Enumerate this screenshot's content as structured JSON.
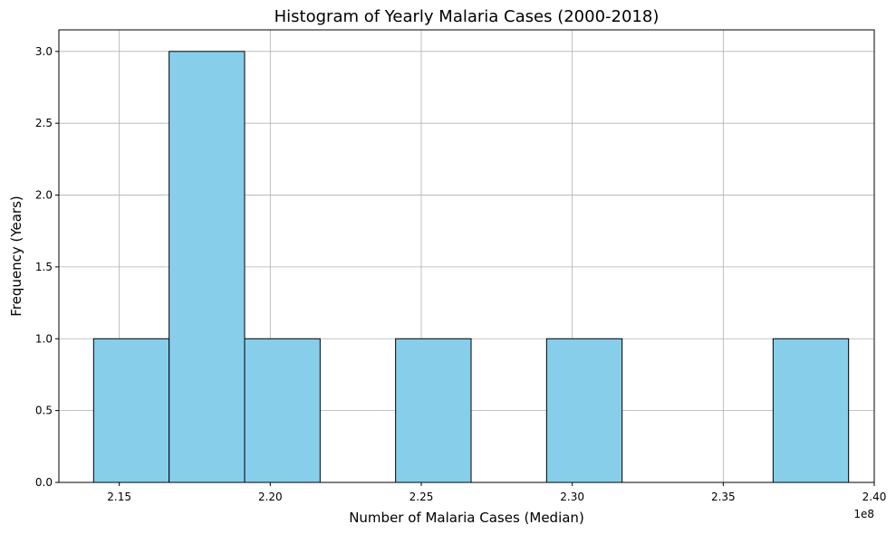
{
  "chart_data": {
    "type": "bar",
    "title": "Histogram of Yearly Malaria Cases (2000-2018)",
    "xlabel": "Number of Malaria Cases (Median)",
    "ylabel": "Frequency (Years)",
    "x_scale_label": "1e8",
    "xlim": [
      2.13,
      2.4
    ],
    "ylim": [
      0,
      3.15
    ],
    "grid": true,
    "bar_color": "#87CEEB",
    "edge_color": "#000000",
    "bins": [
      {
        "start": 2.1415,
        "end": 2.1665,
        "count": 1
      },
      {
        "start": 2.1665,
        "end": 2.1915,
        "count": 3
      },
      {
        "start": 2.1915,
        "end": 2.2165,
        "count": 1
      },
      {
        "start": 2.2165,
        "end": 2.2415,
        "count": 0
      },
      {
        "start": 2.2415,
        "end": 2.2665,
        "count": 1
      },
      {
        "start": 2.2665,
        "end": 2.2915,
        "count": 0
      },
      {
        "start": 2.2915,
        "end": 2.3165,
        "count": 1
      },
      {
        "start": 2.3165,
        "end": 2.3415,
        "count": 0
      },
      {
        "start": 2.3415,
        "end": 2.3665,
        "count": 0
      },
      {
        "start": 2.3665,
        "end": 2.3915,
        "count": 1
      }
    ],
    "x_ticks": [
      "2.15",
      "2.20",
      "2.25",
      "2.30",
      "2.35",
      "2.40"
    ],
    "x_tick_values": [
      2.15,
      2.2,
      2.25,
      2.3,
      2.35,
      2.4
    ],
    "y_ticks": [
      "0.0",
      "0.5",
      "1.0",
      "1.5",
      "2.0",
      "2.5",
      "3.0"
    ],
    "y_tick_values": [
      0,
      0.5,
      1.0,
      1.5,
      2.0,
      2.5,
      3.0
    ]
  }
}
